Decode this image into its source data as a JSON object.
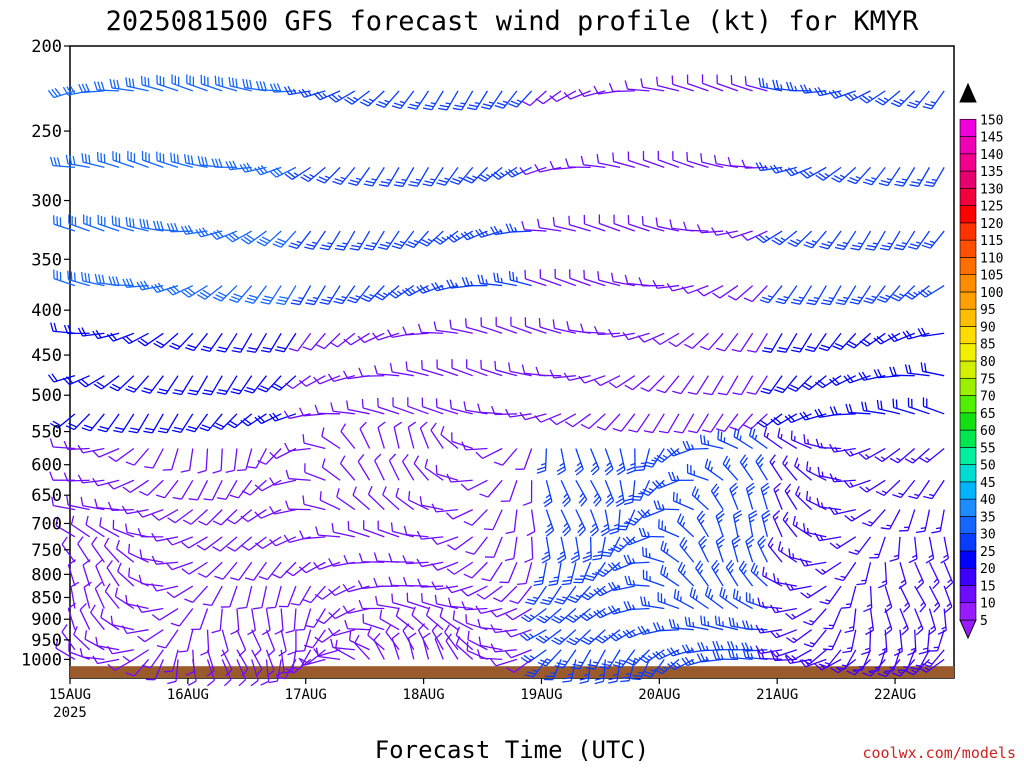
{
  "chart_data": {
    "type": "wind_barb_profile",
    "title": "2025081500 GFS forecast wind profile (kt) for KMYR",
    "xlabel": "Forecast Time (UTC)",
    "ylabel": "",
    "credit": "coolwx.com/models",
    "y_axis": {
      "scale": "log-pressure",
      "range_hPa": [
        200,
        1050
      ],
      "ticks": [
        "200",
        "250",
        "300",
        "350",
        "400",
        "450",
        "500",
        "550",
        "600",
        "650",
        "700",
        "750",
        "800",
        "850",
        "900",
        "950",
        "1000"
      ]
    },
    "x_axis": {
      "range_hours": [
        0,
        180
      ],
      "ticks": [
        {
          "label": "15AUG",
          "sub": "2025",
          "hour": 0
        },
        {
          "label": "16AUG",
          "sub": "",
          "hour": 24
        },
        {
          "label": "17AUG",
          "sub": "",
          "hour": 48
        },
        {
          "label": "18AUG",
          "sub": "",
          "hour": 72
        },
        {
          "label": "19AUG",
          "sub": "",
          "hour": 96
        },
        {
          "label": "20AUG",
          "sub": "",
          "hour": 120
        },
        {
          "label": "21AUG",
          "sub": "",
          "hour": 144
        },
        {
          "label": "22AUG",
          "sub": "",
          "hour": 168
        }
      ]
    },
    "barb_levels_hPa": [
      225,
      275,
      325,
      375,
      425,
      475,
      525,
      575,
      625,
      675,
      725,
      775,
      825,
      875,
      925,
      975,
      1000
    ],
    "barb_time_step_hours": 3,
    "speed_kt_by_period": [
      {
        "hours": [
          0,
          48
        ],
        "upper_200_400": 30,
        "mid_450_550": 20,
        "low_600_1000": 10
      },
      {
        "hours": [
          48,
          96
        ],
        "upper_200_400": 25,
        "mid_450_550": 10,
        "low_600_1000": 10
      },
      {
        "hours": [
          96,
          144
        ],
        "upper_200_400": 10,
        "mid_450_550": 10,
        "low_600_1000": 25
      },
      {
        "hours": [
          144,
          180
        ],
        "upper_200_400": 25,
        "mid_450_550": 20,
        "low_600_1000": 15
      }
    ],
    "colorbar": {
      "ticks": [
        "5",
        "10",
        "15",
        "20",
        "25",
        "30",
        "35",
        "40",
        "45",
        "50",
        "55",
        "60",
        "65",
        "70",
        "75",
        "80",
        "85",
        "90",
        "95",
        "100",
        "105",
        "110",
        "115",
        "120",
        "125",
        "130",
        "135",
        "140",
        "145",
        "150"
      ],
      "colors": [
        "#9a1bff",
        "#6f0bff",
        "#3b00ff",
        "#0000ff",
        "#0a3cff",
        "#1466ff",
        "#1e8cff",
        "#00b4ff",
        "#00dcd2",
        "#00f0a0",
        "#00e650",
        "#12e012",
        "#50f000",
        "#9af000",
        "#d2f000",
        "#f0f000",
        "#ffdc00",
        "#ffbe00",
        "#ffa000",
        "#ff8c00",
        "#ff6e00",
        "#ff5000",
        "#ff3200",
        "#ff0000",
        "#f0003c",
        "#e6006e",
        "#f0008c",
        "#f000b4",
        "#f000dc",
        "#000000"
      ]
    },
    "terrain": {
      "color": "#9b5a2b",
      "top_hPa": 1018,
      "bottom_hPa": 1050
    },
    "grid": false,
    "legend": "right"
  }
}
